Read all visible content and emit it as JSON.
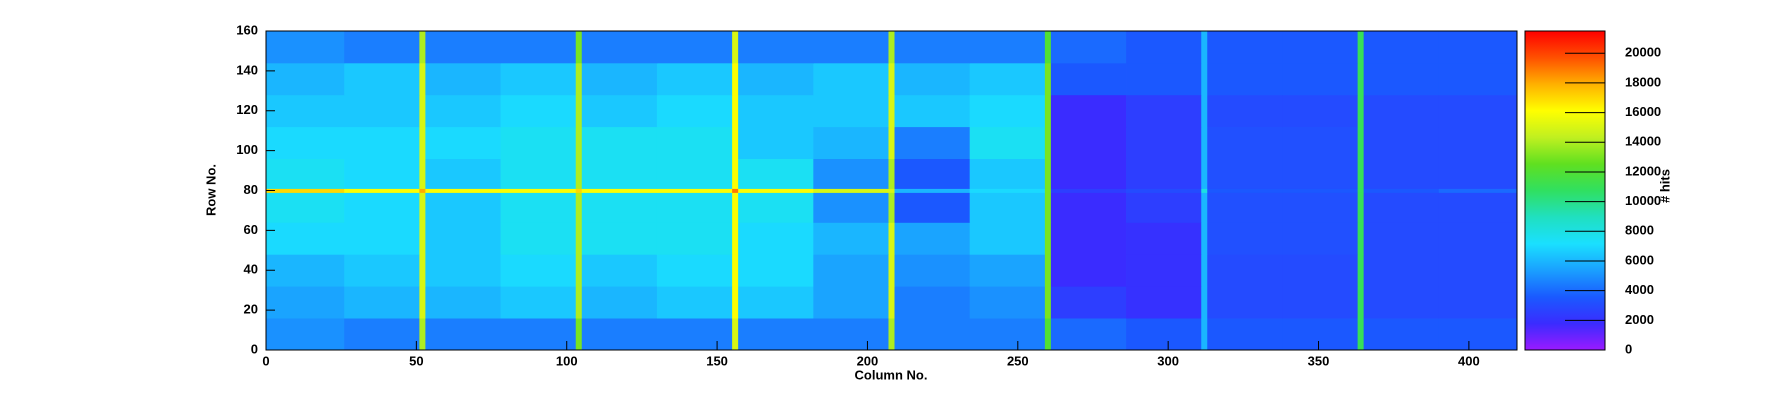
{
  "chart_data": {
    "type": "heatmap",
    "x_label": "Column No.",
    "y_label": "Row No.",
    "z_label": "# hits",
    "x_edges": [
      0,
      26,
      51,
      53,
      78,
      103,
      105,
      130,
      155,
      157,
      182,
      207,
      209,
      234,
      259,
      261,
      286,
      311,
      313,
      338,
      363,
      365,
      390,
      416
    ],
    "y_edges": [
      0,
      16,
      32,
      48,
      64,
      79,
      81,
      96,
      112,
      128,
      144,
      160
    ],
    "z": [
      [
        5000,
        4500,
        14000,
        4500,
        4500,
        13000,
        4500,
        4500,
        15000,
        4500,
        4500,
        14000,
        4500,
        4500,
        12000,
        4000,
        3500,
        6000,
        3500,
        3500,
        11000,
        3500,
        3500
      ],
      [
        5500,
        6000,
        15000,
        6000,
        6500,
        14000,
        6000,
        6500,
        16000,
        6500,
        5500,
        15000,
        4500,
        5000,
        13000,
        2500,
        2000,
        6000,
        3000,
        3000,
        11000,
        3000,
        3000
      ],
      [
        6000,
        6500,
        15000,
        6500,
        7000,
        14000,
        6500,
        7000,
        16000,
        7000,
        5500,
        15000,
        5000,
        5500,
        13000,
        1800,
        2000,
        6000,
        3000,
        3000,
        11000,
        3000,
        3000
      ],
      [
        7000,
        7000,
        15000,
        6500,
        7500,
        14000,
        7500,
        7500,
        16000,
        7000,
        6000,
        15000,
        5500,
        6500,
        13000,
        1800,
        2000,
        6000,
        3200,
        3200,
        11000,
        3000,
        3000
      ],
      [
        7500,
        7000,
        15000,
        6500,
        7500,
        14000,
        7500,
        7500,
        16000,
        7500,
        5000,
        14000,
        3500,
        6500,
        13000,
        1800,
        2500,
        6000,
        3200,
        3200,
        11000,
        3000,
        3000
      ],
      [
        17000,
        16000,
        18000,
        16000,
        16000,
        17000,
        16000,
        16000,
        19000,
        16000,
        15000,
        15000,
        6000,
        7000,
        13000,
        2500,
        3000,
        8000,
        3500,
        3500,
        11000,
        3500,
        4000
      ],
      [
        7500,
        7000,
        15000,
        6500,
        7500,
        14000,
        7500,
        7500,
        16000,
        7500,
        5000,
        14000,
        3500,
        6500,
        13000,
        1800,
        2500,
        6000,
        3200,
        3200,
        11000,
        3000,
        3000
      ],
      [
        7000,
        7000,
        15000,
        7000,
        7500,
        14000,
        7500,
        7500,
        16000,
        6500,
        6000,
        15000,
        4500,
        7500,
        13000,
        1800,
        2500,
        6000,
        3200,
        3200,
        11000,
        3000,
        3000
      ],
      [
        6500,
        6500,
        15000,
        6500,
        7000,
        14000,
        6500,
        7000,
        16000,
        6500,
        6500,
        15000,
        6500,
        7000,
        13000,
        1800,
        2500,
        6000,
        3000,
        3000,
        11000,
        3000,
        3000
      ],
      [
        6000,
        6500,
        15000,
        6000,
        6500,
        14000,
        6000,
        6500,
        16000,
        6000,
        6500,
        15000,
        6000,
        6500,
        13000,
        3500,
        3500,
        6000,
        3500,
        3500,
        11000,
        3500,
        3500
      ],
      [
        5000,
        4500,
        14000,
        4500,
        4500,
        13000,
        4500,
        4500,
        15000,
        4500,
        4500,
        14000,
        4500,
        4500,
        12000,
        4000,
        3500,
        6000,
        3500,
        3500,
        11000,
        3500,
        3500
      ]
    ],
    "xlim": [
      0,
      416
    ],
    "ylim": [
      0,
      160
    ],
    "zlim": [
      0,
      21500
    ],
    "xticks": [
      0,
      50,
      100,
      150,
      200,
      250,
      300,
      350,
      400
    ],
    "yticks": [
      0,
      20,
      40,
      60,
      80,
      100,
      120,
      140,
      160
    ],
    "zticks": [
      0,
      2000,
      4000,
      6000,
      8000,
      10000,
      12000,
      14000,
      16000,
      18000,
      20000
    ],
    "colorscale": [
      "#9a1aff",
      "#3a2cff",
      "#1a5aff",
      "#1aa0ff",
      "#1ae0ff",
      "#20e0c0",
      "#30e060",
      "#60e020",
      "#c0f020",
      "#ffff00",
      "#ffb000",
      "#ff5000",
      "#ff0000"
    ]
  }
}
